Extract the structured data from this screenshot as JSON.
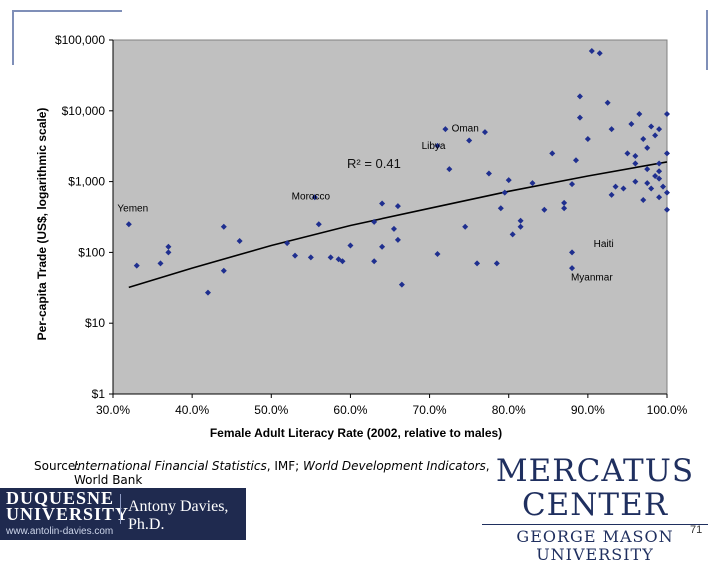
{
  "chart_data": {
    "type": "scatter",
    "xlabel": "Female Adult Literacy Rate (2002, relative to males)",
    "ylabel": "Per-capita Trade (US$, logarithmic scale)",
    "xlim": [
      0.3,
      1.0
    ],
    "ylim": [
      1,
      100000
    ],
    "y_scale": "log",
    "x_ticks": [
      0.3,
      0.4,
      0.5,
      0.6,
      0.7,
      0.8,
      0.9,
      1.0
    ],
    "x_tick_labels": [
      "30.0%",
      "40.0%",
      "50.0%",
      "60.0%",
      "70.0%",
      "80.0%",
      "90.0%",
      "100.0%"
    ],
    "y_ticks": [
      1,
      10,
      100,
      1000,
      10000,
      100000
    ],
    "y_tick_labels": [
      "$1",
      "$10",
      "$100",
      "$1,000",
      "$10,000",
      "$100,000"
    ],
    "grid": false,
    "marker_color": "#1f2f8f",
    "plot_bg": "#c0c0c0",
    "r_squared": "R² = 0.41",
    "trend": [
      [
        0.32,
        32
      ],
      [
        0.4,
        60
      ],
      [
        0.5,
        125
      ],
      [
        0.6,
        240
      ],
      [
        0.7,
        420
      ],
      [
        0.8,
        730
      ],
      [
        0.9,
        1200
      ],
      [
        1.0,
        1900
      ]
    ],
    "labels": [
      {
        "text": "Oman",
        "x": 0.745,
        "y": 5100
      },
      {
        "text": "Libya",
        "x": 0.705,
        "y": 2900
      },
      {
        "text": "Morocco",
        "x": 0.55,
        "y": 560
      },
      {
        "text": "Yemen",
        "x": 0.325,
        "y": 380
      },
      {
        "text": "Haiti",
        "x": 0.92,
        "y": 120
      },
      {
        "text": "Myanmar",
        "x": 0.905,
        "y": 40
      }
    ],
    "points": [
      [
        0.32,
        250
      ],
      [
        0.33,
        65
      ],
      [
        0.36,
        70
      ],
      [
        0.37,
        120
      ],
      [
        0.37,
        100
      ],
      [
        0.42,
        27
      ],
      [
        0.44,
        230
      ],
      [
        0.44,
        55
      ],
      [
        0.46,
        145
      ],
      [
        0.52,
        135
      ],
      [
        0.53,
        90
      ],
      [
        0.55,
        85
      ],
      [
        0.555,
        600
      ],
      [
        0.56,
        250
      ],
      [
        0.575,
        85
      ],
      [
        0.585,
        80
      ],
      [
        0.59,
        75
      ],
      [
        0.6,
        125
      ],
      [
        0.63,
        270
      ],
      [
        0.63,
        75
      ],
      [
        0.64,
        490
      ],
      [
        0.64,
        120
      ],
      [
        0.655,
        215
      ],
      [
        0.66,
        450
      ],
      [
        0.66,
        150
      ],
      [
        0.665,
        35
      ],
      [
        0.71,
        3200
      ],
      [
        0.71,
        95
      ],
      [
        0.72,
        5500
      ],
      [
        0.725,
        1500
      ],
      [
        0.745,
        230
      ],
      [
        0.75,
        3800
      ],
      [
        0.76,
        70
      ],
      [
        0.77,
        5000
      ],
      [
        0.775,
        1300
      ],
      [
        0.785,
        70
      ],
      [
        0.79,
        420
      ],
      [
        0.795,
        700
      ],
      [
        0.8,
        1050
      ],
      [
        0.805,
        180
      ],
      [
        0.815,
        230
      ],
      [
        0.815,
        280
      ],
      [
        0.83,
        950
      ],
      [
        0.845,
        400
      ],
      [
        0.855,
        2500
      ],
      [
        0.87,
        420
      ],
      [
        0.87,
        500
      ],
      [
        0.88,
        100
      ],
      [
        0.88,
        60
      ],
      [
        0.88,
        920
      ],
      [
        0.885,
        2000
      ],
      [
        0.89,
        8000
      ],
      [
        0.89,
        16000
      ],
      [
        0.9,
        4000
      ],
      [
        0.905,
        70000
      ],
      [
        0.915,
        65000
      ],
      [
        0.925,
        13000
      ],
      [
        0.93,
        5500
      ],
      [
        0.93,
        650
      ],
      [
        0.935,
        850
      ],
      [
        0.945,
        800
      ],
      [
        0.95,
        2500
      ],
      [
        0.955,
        6500
      ],
      [
        0.96,
        2300
      ],
      [
        0.96,
        1800
      ],
      [
        0.965,
        9000
      ],
      [
        0.97,
        4000
      ],
      [
        0.975,
        3000
      ],
      [
        0.975,
        1500
      ],
      [
        0.975,
        950
      ],
      [
        0.98,
        6000
      ],
      [
        0.98,
        800
      ],
      [
        0.985,
        4500
      ],
      [
        0.99,
        5500
      ],
      [
        0.99,
        1800
      ],
      [
        0.99,
        1400
      ],
      [
        0.99,
        1100
      ],
      [
        0.99,
        600
      ],
      [
        0.995,
        850
      ],
      [
        1.0,
        9000
      ],
      [
        1.0,
        2500
      ],
      [
        1.0,
        700
      ],
      [
        1.0,
        400
      ],
      [
        0.96,
        1000
      ],
      [
        0.97,
        550
      ],
      [
        0.985,
        1200
      ]
    ]
  },
  "source": {
    "label": "Source:",
    "text_italic_1": "International Financial Statistics",
    "text_2": ", IMF; ",
    "text_italic_3": "World Development Indicators",
    "text_4": ",",
    "line2": "World Bank"
  },
  "logo": {
    "org_line1": "MERCATUS CENTER",
    "org_line2": "GEORGE MASON UNIVERSITY"
  },
  "footer": {
    "university": "DUQUESNE UNIVERSITY",
    "author": "Antony Davies, Ph.D.",
    "website": "www.antolin-davies.com"
  },
  "page_number": "71"
}
